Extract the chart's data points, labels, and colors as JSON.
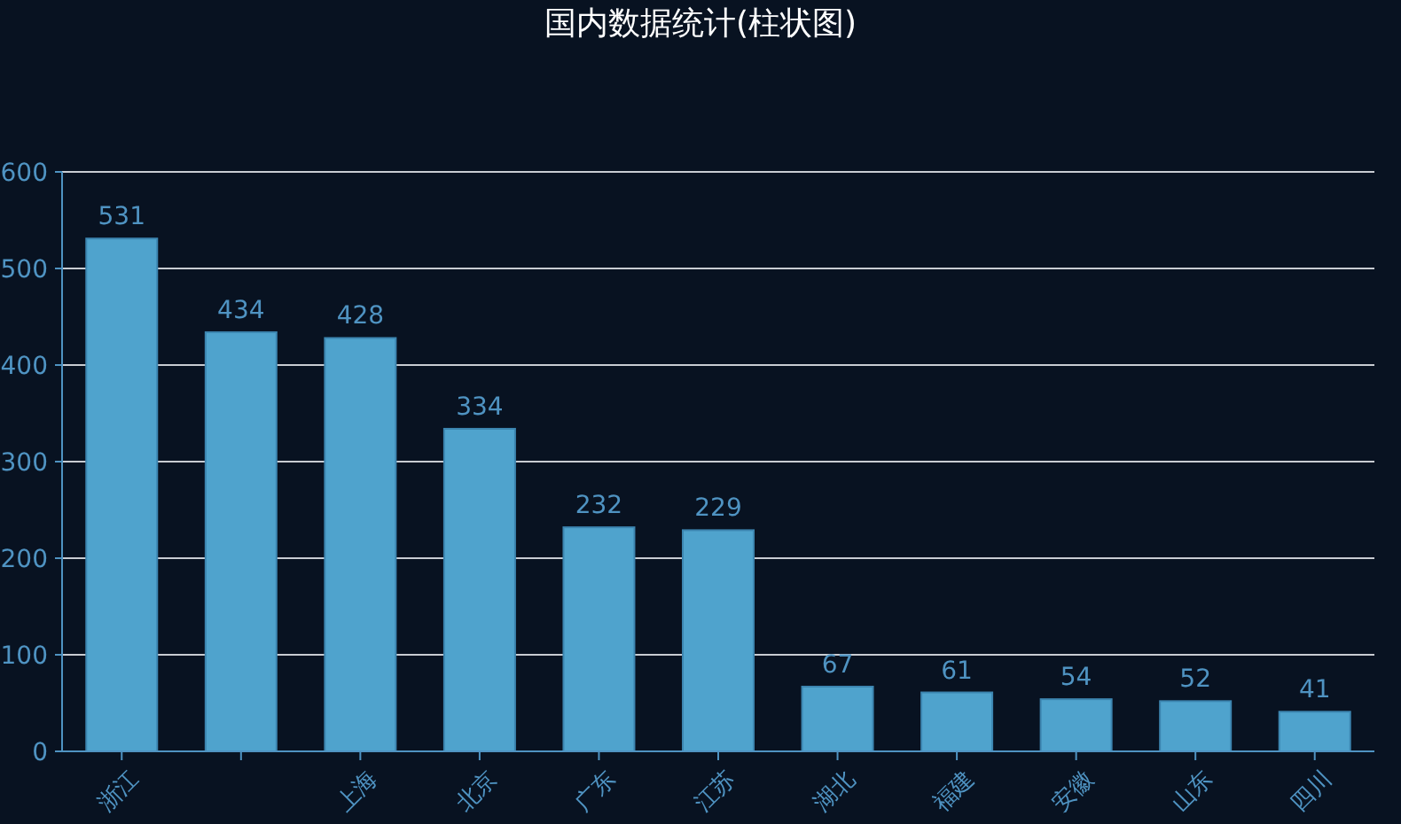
{
  "chart_data": {
    "type": "bar",
    "title": "国内数据统计(柱状图)",
    "categories": [
      "浙江",
      null,
      "上海",
      "北京",
      "广东",
      "江苏",
      "湖北",
      "福建",
      "安徽",
      "山东",
      "四川"
    ],
    "values": [
      531,
      434,
      428,
      334,
      232,
      229,
      67,
      61,
      54,
      52,
      41
    ],
    "color": "#4fa3cd",
    "ylim": [
      0,
      600
    ],
    "yticks": [
      0,
      100,
      200,
      300,
      400,
      500,
      600
    ],
    "grid": "y",
    "data_labels": true
  }
}
